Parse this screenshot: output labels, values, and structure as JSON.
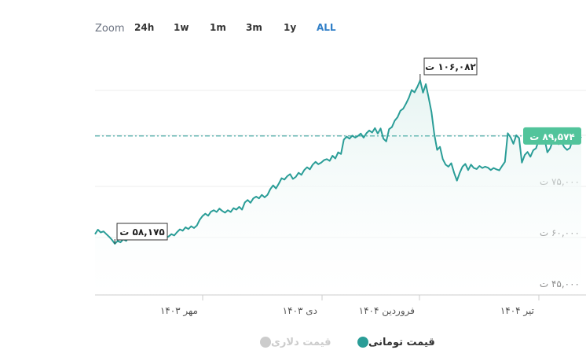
{
  "zoom": {
    "label": "Zoom",
    "buttons": [
      {
        "label": "24h",
        "active": false
      },
      {
        "label": "1w",
        "active": false
      },
      {
        "label": "1m",
        "active": false
      },
      {
        "label": "3m",
        "active": false
      },
      {
        "label": "1y",
        "active": false
      },
      {
        "label": "ALL",
        "active": true
      }
    ]
  },
  "colors": {
    "line": "#2a9d97",
    "area": "#e6f4f2",
    "current_badge": "#52c49b",
    "active_zoom": "#2f7ec7",
    "legend_inactive": "#cccccc"
  },
  "chart_data": {
    "type": "area",
    "x_ticks": [
      "مهر ۱۴۰۳",
      "دی ۱۴۰۳",
      "فروردین ۱۴۰۴",
      "تیر ۱۴۰۴"
    ],
    "y_ticks": [
      {
        "value": 45000,
        "label": "۴۵,۰۰۰ ت"
      },
      {
        "value": 60000,
        "label": "۶۰,۰۰۰ ت"
      },
      {
        "value": 75000,
        "label": "۷۵,۰۰۰ ت"
      },
      {
        "value": 90000,
        "label": "۹۰,۰۰۰ ت"
      }
    ],
    "ylim": [
      45000,
      105000
    ],
    "grid": true,
    "annotations": {
      "min": {
        "value": 58175,
        "label": "۵۸,۱۷۵ ت"
      },
      "max": {
        "value": 106082,
        "label": "۱۰۶,۰۸۲ ت"
      },
      "current": {
        "value": 89574,
        "label": "۸۹,۵۷۴ ت"
      }
    },
    "series": [
      {
        "name": "قیمت تومانی",
        "values": [
          61000,
          62300,
          61500,
          61800,
          61000,
          60200,
          59300,
          58175,
          59000,
          58600,
          59500,
          59000,
          60200,
          59700,
          60300,
          59800,
          60400,
          59800,
          60500,
          59700,
          60300,
          59600,
          60000,
          59800,
          60400,
          59900,
          60300,
          61000,
          60600,
          61600,
          62400,
          62000,
          63000,
          62500,
          63300,
          62800,
          63500,
          65200,
          66300,
          67000,
          66400,
          67600,
          68000,
          67500,
          68500,
          67800,
          67300,
          68000,
          67500,
          68600,
          68200,
          69000,
          68200,
          70300,
          71000,
          70200,
          71500,
          72000,
          71500,
          72500,
          71800,
          72500,
          74200,
          75300,
          74400,
          75800,
          77400,
          77000,
          78000,
          78600,
          77200,
          77800,
          79000,
          78400,
          79800,
          80600,
          80000,
          81400,
          82200,
          81500,
          82000,
          82700,
          83000,
          82500,
          84000,
          83200,
          85000,
          84500,
          88700,
          89600,
          89000,
          89900,
          89300,
          89800,
          90500,
          89300,
          90600,
          91400,
          90800,
          92100,
          90500,
          92000,
          89000,
          88200,
          91800,
          92400,
          94300,
          95300,
          97200,
          97800,
          99300,
          101000,
          103300,
          102600,
          104200,
          106082,
          102500,
          105000,
          101000,
          96800,
          90300,
          85700,
          86600,
          83000,
          81400,
          80800,
          81800,
          79000,
          76700,
          79000,
          80800,
          81600,
          79800,
          81400,
          80400,
          80100,
          81000,
          80400,
          80800,
          80500,
          79800,
          80400,
          80000,
          79700,
          81000,
          82200,
          90600,
          89400,
          87500,
          90000,
          89200,
          82000,
          84200,
          85100,
          83700,
          85600,
          86200,
          88700,
          87800,
          89000,
          85000,
          86200,
          88500,
          89700,
          87400,
          88000,
          86500,
          85700,
          86300,
          89000,
          90200,
          88500,
          89574
        ]
      },
      {
        "name": "قیمت دلاری",
        "values": []
      }
    ]
  }
}
